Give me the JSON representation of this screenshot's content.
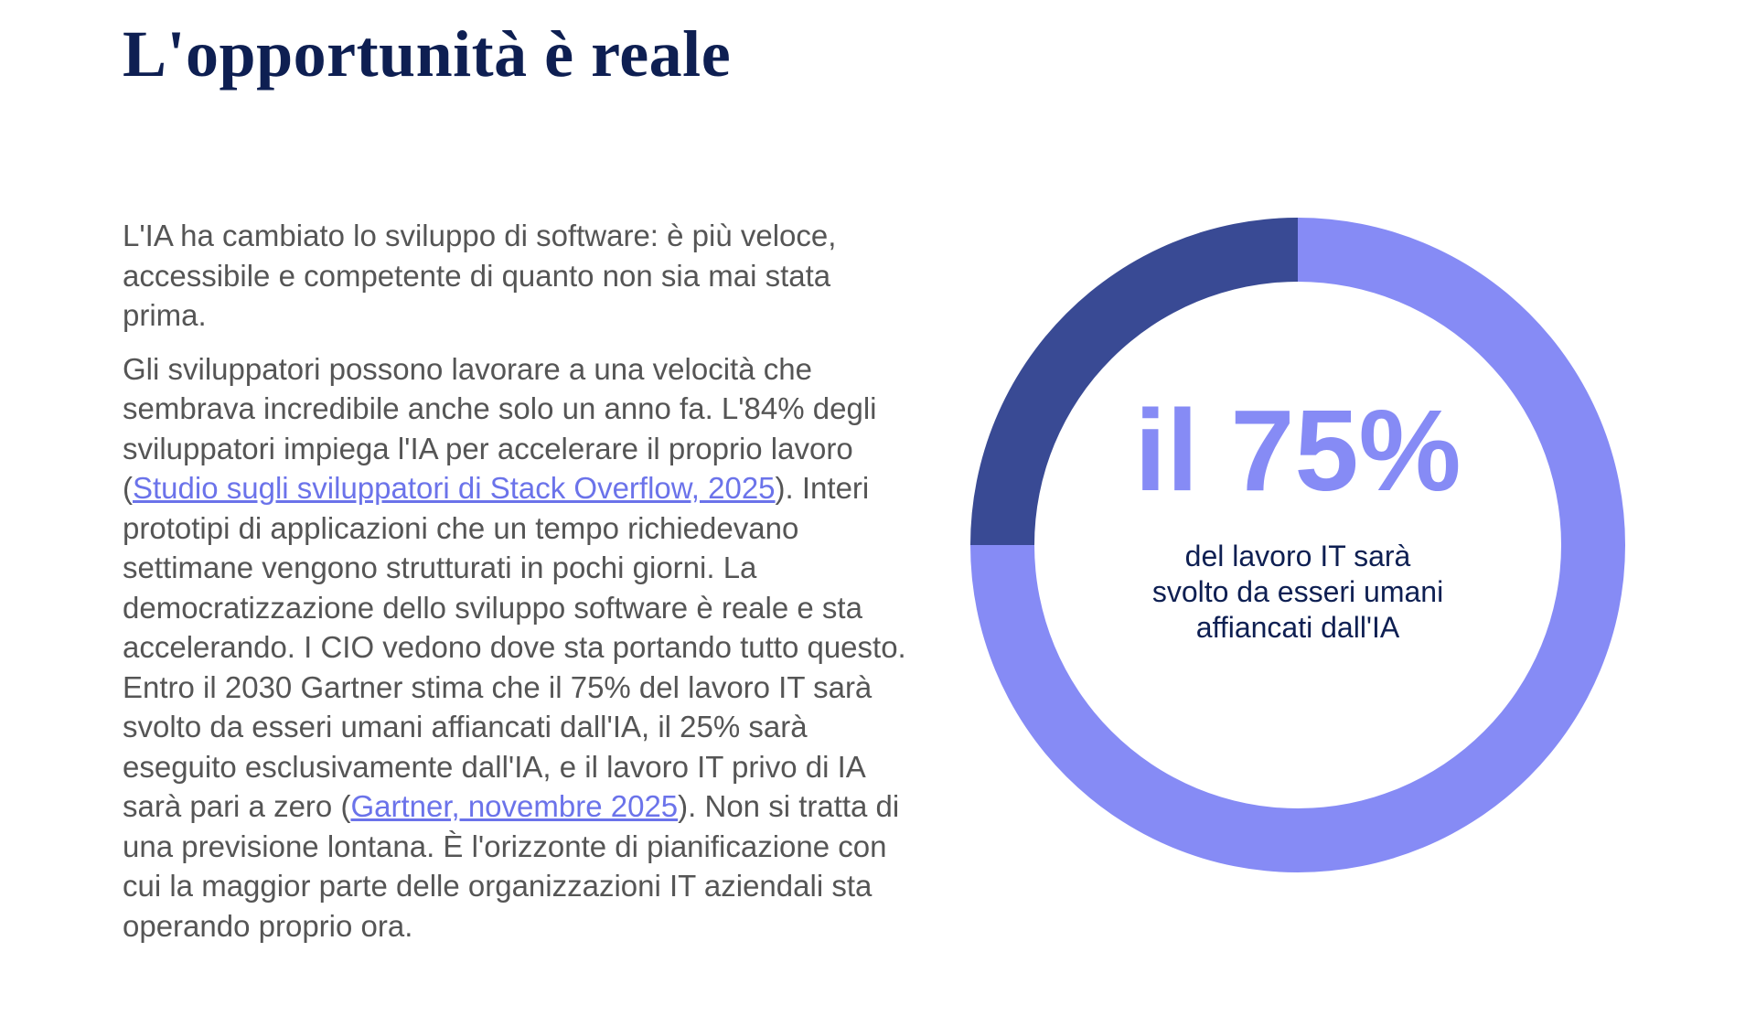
{
  "header": {
    "title": "L'opportunità è reale"
  },
  "body": {
    "paragraphs": [
      [
        "L'IA ha cambiato lo sviluppo di software: è più veloce, accessibile e competente di quanto non sia mai stata prima."
      ],
      [
        "Gli sviluppatori possono lavorare a una velocità che sembrava incredibile anche solo un anno fa. L'84% degli sviluppatori impiega l'IA per accelerare il proprio lavoro (",
        "Studio sugli sviluppatori di Stack Overflow, 2025",
        "). Interi prototipi di applicazioni che un tempo richiedevano settimane vengono strutturati in pochi giorni. La democratizzazione dello sviluppo software è reale e sta accelerando. I CIO vedono dove sta portando tutto questo. Entro il 2030 Gartner stima che il 75% del lavoro IT sarà svolto da esseri umani affiancati dall'IA, il 25% sarà eseguito esclusivamente dall'IA, e il lavoro IT privo di IA sarà pari a zero (",
        "Gartner, novembre 2025",
        "). Non si tratta di una previsione lontana. È l'orizzonte di pianificazione con cui la maggior parte delle organizzazioni IT aziendali sta operando proprio ora."
      ]
    ]
  },
  "chart_data": {
    "type": "donut",
    "values": [
      75,
      25
    ],
    "colors": [
      "#868bf5",
      "#394a94"
    ],
    "center_label": "il 75%",
    "caption": [
      "del lavoro IT sarà",
      "svolto da esseri umani",
      "affiancati dall'IA"
    ]
  }
}
